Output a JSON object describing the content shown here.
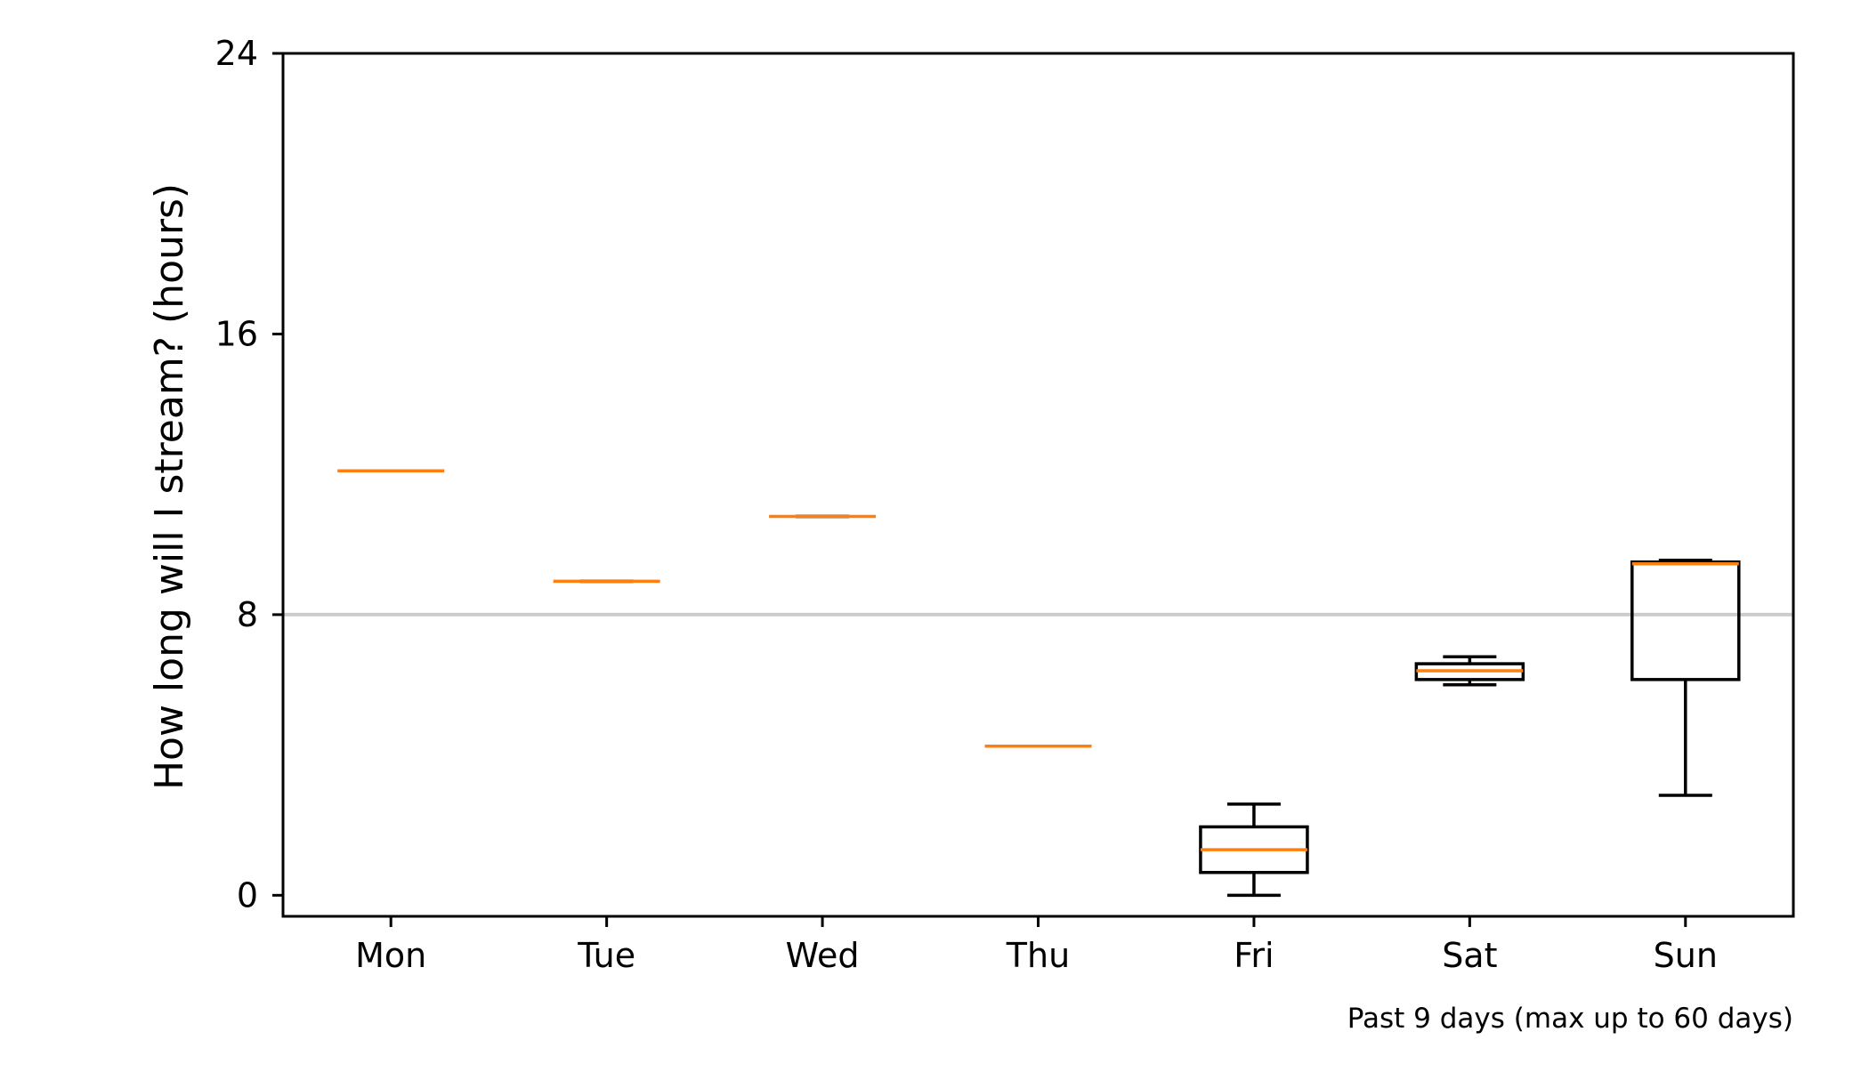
{
  "chart_data": {
    "type": "box",
    "title": "",
    "xlabel": "",
    "ylabel": "How long will I stream? (hours)",
    "ylim": [
      -0.6,
      24
    ],
    "yticks": [
      0,
      8,
      16,
      24
    ],
    "categories": [
      "Mon",
      "Tue",
      "Wed",
      "Thu",
      "Fri",
      "Sat",
      "Sun"
    ],
    "boxes": [
      {
        "label": "Mon",
        "whisker_low": 12.1,
        "q1": 12.1,
        "median": 12.1,
        "q3": 12.1,
        "whisker_high": 12.1
      },
      {
        "label": "Tue",
        "whisker_low": 8.95,
        "q1": 8.95,
        "median": 8.95,
        "q3": 8.95,
        "whisker_high": 8.95
      },
      {
        "label": "Wed",
        "whisker_low": 10.8,
        "q1": 10.8,
        "median": 10.8,
        "q3": 10.8,
        "whisker_high": 10.8
      },
      {
        "label": "Thu",
        "whisker_low": 4.25,
        "q1": 4.25,
        "median": 4.25,
        "q3": 4.25,
        "whisker_high": 4.25
      },
      {
        "label": "Fri",
        "whisker_low": 0.0,
        "q1": 0.65,
        "median": 1.3,
        "q3": 1.95,
        "whisker_high": 2.6
      },
      {
        "label": "Sat",
        "whisker_low": 6.0,
        "q1": 6.15,
        "median": 6.4,
        "q3": 6.6,
        "whisker_high": 6.8
      },
      {
        "label": "Sun",
        "whisker_low": 2.85,
        "q1": 6.15,
        "median": 9.45,
        "q3": 9.5,
        "whisker_high": 9.55
      }
    ],
    "reference_line": {
      "y": 8,
      "color": "#cccccc"
    },
    "median_color": "#ff7f0e",
    "box_color": "#000000",
    "grid": false,
    "legend": "none"
  },
  "footnote": "Past 9 days (max up to 60 days)"
}
